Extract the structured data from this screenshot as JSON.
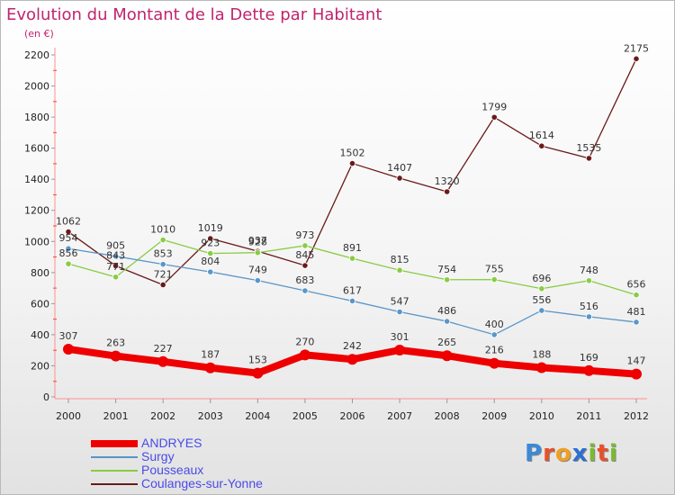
{
  "chart_data": {
    "type": "line",
    "title": "Evolution du Montant de la Dette par Habitant",
    "subtitle": "(en €)",
    "xlabel": "",
    "ylabel": "",
    "categories": [
      "2000",
      "2001",
      "2002",
      "2003",
      "2004",
      "2005",
      "2006",
      "2007",
      "2008",
      "2009",
      "2010",
      "2011",
      "2012"
    ],
    "ylim": [
      0,
      2200
    ],
    "yticks": [
      0,
      200,
      400,
      600,
      800,
      1000,
      1200,
      1400,
      1600,
      1800,
      2000,
      2200
    ],
    "grid": false,
    "legend_position": "bottom-left",
    "series": [
      {
        "name": "ANDRYES",
        "color": "#ee0000",
        "values": [
          307,
          263,
          227,
          187,
          153,
          270,
          242,
          301,
          265,
          216,
          188,
          169,
          147
        ]
      },
      {
        "name": "Surgy",
        "color": "#5a96c8",
        "values": [
          954,
          905,
          853,
          804,
          749,
          683,
          617,
          547,
          486,
          400,
          556,
          516,
          481
        ]
      },
      {
        "name": "Pousseaux",
        "color": "#88cc44",
        "values": [
          856,
          771,
          1010,
          923,
          928,
          973,
          891,
          815,
          754,
          755,
          696,
          748,
          656
        ]
      },
      {
        "name": "Coulanges-sur-Yonne",
        "color": "#6a1a1a",
        "values": [
          1062,
          843,
          721,
          1019,
          937,
          845,
          1502,
          1407,
          1320,
          1799,
          1614,
          1535,
          2175
        ]
      }
    ]
  },
  "logo": {
    "chars": [
      "P",
      "r",
      "o",
      "x",
      "i",
      "t",
      "i"
    ],
    "colors": [
      "#3a8ad8",
      "#e8502a",
      "#f0a020",
      "#2c6fd0",
      "#7abb30",
      "#e8502a",
      "#7abb30"
    ]
  }
}
